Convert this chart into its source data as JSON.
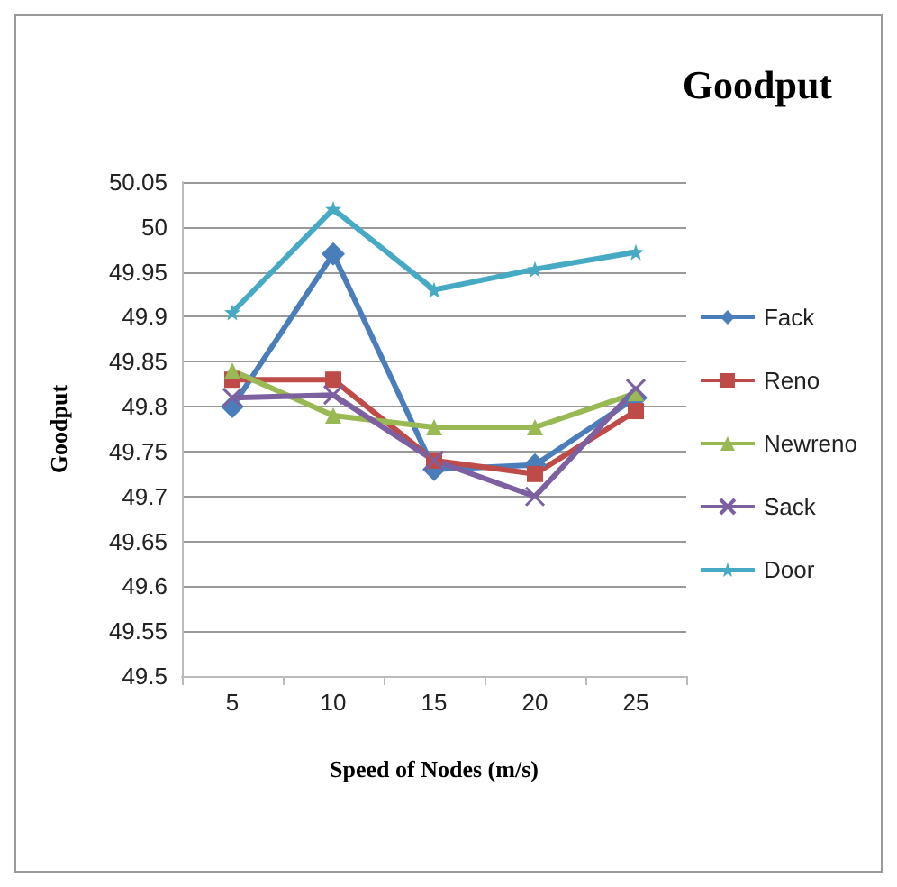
{
  "chart_data": {
    "type": "line",
    "title": "Goodput",
    "xlabel": "Speed of Nodes (m/s)",
    "ylabel": "Goodput",
    "categories": [
      "5",
      "10",
      "15",
      "20",
      "25"
    ],
    "series": [
      {
        "name": "Fack",
        "color": "#4a7ebb",
        "marker": "diamond",
        "values": [
          49.8,
          49.97,
          49.73,
          49.735,
          49.81
        ]
      },
      {
        "name": "Reno",
        "color": "#be4b48",
        "marker": "square",
        "values": [
          49.83,
          49.83,
          49.74,
          49.725,
          49.795
        ]
      },
      {
        "name": "Newreno",
        "color": "#98b954",
        "marker": "triangle",
        "values": [
          49.84,
          49.79,
          49.777,
          49.777,
          49.815
        ]
      },
      {
        "name": "Sack",
        "color": "#7d60a0",
        "marker": "cross",
        "values": [
          49.81,
          49.813,
          49.74,
          49.7,
          49.82
        ]
      },
      {
        "name": "Door",
        "color": "#46aac5",
        "marker": "star",
        "values": [
          49.905,
          50.02,
          49.93,
          49.953,
          49.972
        ]
      }
    ],
    "ylim": [
      49.5,
      50.05
    ],
    "yticks": [
      49.5,
      49.55,
      49.6,
      49.65,
      49.7,
      49.75,
      49.8,
      49.85,
      49.9,
      49.95,
      50,
      50.05
    ],
    "grid": "y",
    "legend": "right"
  }
}
